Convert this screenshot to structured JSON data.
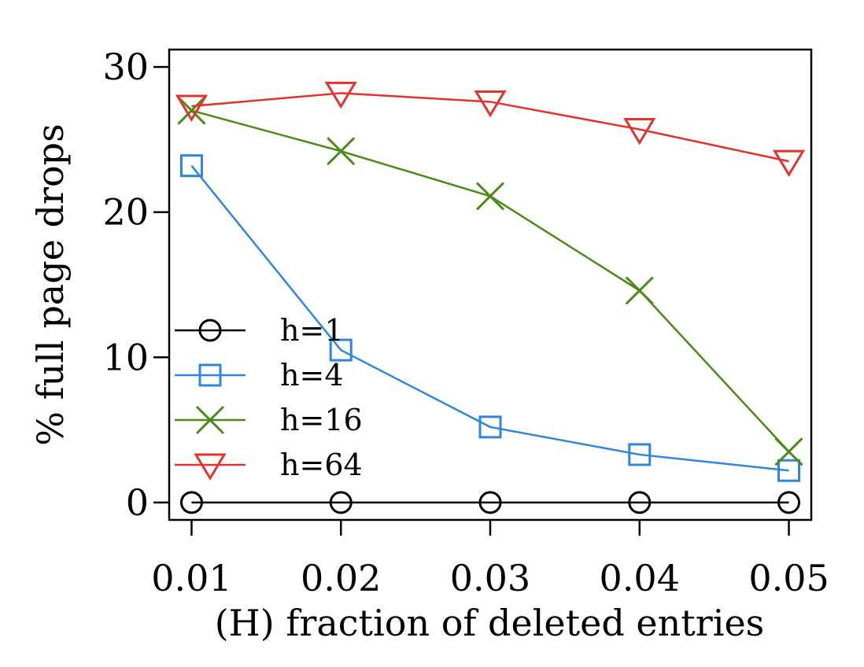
{
  "chart_data": {
    "type": "line",
    "title": "",
    "xlabel": "(H) fraction of deleted entries",
    "ylabel": "% full page drops",
    "x": [
      0.01,
      0.02,
      0.03,
      0.04,
      0.05
    ],
    "x_tick_labels": [
      "0.01",
      "0.02",
      "0.03",
      "0.04",
      "0.05"
    ],
    "y_ticks": [
      0,
      10,
      20,
      30
    ],
    "y_tick_labels": [
      "0",
      "10",
      "20",
      "30"
    ],
    "xlim": [
      0.0085,
      0.0515
    ],
    "ylim": [
      -1.2,
      31.2
    ],
    "grid": false,
    "legend_position": "lower-left",
    "series": [
      {
        "name": "h=1",
        "marker": "circle",
        "color": "#000000",
        "values": [
          0,
          0,
          0,
          0,
          0
        ]
      },
      {
        "name": "h=4",
        "marker": "square",
        "color": "#2f86dc",
        "values": [
          23.2,
          10.5,
          5.2,
          3.3,
          2.2
        ]
      },
      {
        "name": "h=16",
        "marker": "x",
        "color": "#4b8a17",
        "values": [
          27.0,
          24.2,
          21.1,
          14.6,
          3.5
        ]
      },
      {
        "name": "h=64",
        "marker": "triangle-down",
        "color": "#e0342c",
        "values": [
          27.3,
          28.2,
          27.6,
          25.7,
          23.5
        ]
      }
    ]
  }
}
